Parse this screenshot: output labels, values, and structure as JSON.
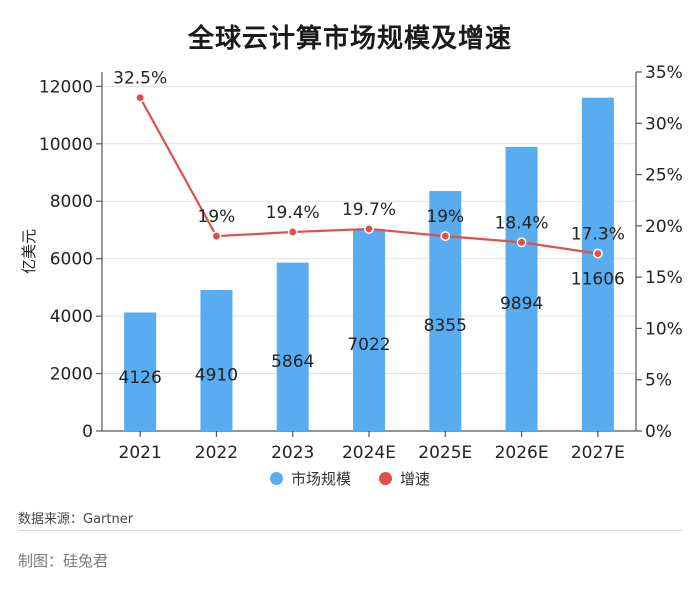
{
  "chart_data": {
    "type": "bar",
    "title": "全球云计算市场规模及增速",
    "ylabel": "亿美元",
    "ylabel_right": "",
    "categories": [
      "2021",
      "2022",
      "2023",
      "2024E",
      "2025E",
      "2026E",
      "2027E"
    ],
    "series": [
      {
        "name": "市场规模",
        "type": "bar",
        "axis": "left",
        "color": "#5aacf0",
        "values": [
          4126,
          4910,
          5864,
          7022,
          8355,
          9894,
          11606
        ],
        "labels": [
          "4126",
          "4910",
          "5864",
          "7022",
          "8355",
          "9894",
          "11606"
        ]
      },
      {
        "name": "增速",
        "type": "line",
        "axis": "right",
        "color": "#e0504a",
        "values": [
          32.5,
          19,
          19.4,
          19.7,
          19,
          18.4,
          17.3
        ],
        "labels": [
          "32.5%",
          "19%",
          "19.4%",
          "19.7%",
          "19%",
          "18.4%",
          "17.3%"
        ]
      }
    ],
    "ylim": [
      0,
      12500
    ],
    "yticks": [
      "0",
      "2000",
      "4000",
      "6000",
      "8000",
      "10000",
      "12000"
    ],
    "ylim_right": [
      0,
      35
    ],
    "yticks_right": [
      "0%",
      "5%",
      "10%",
      "15%",
      "20%",
      "25%",
      "30%",
      "35%"
    ],
    "grid": true,
    "legend_position": "bottom-center"
  },
  "footer": {
    "source": "数据来源：Gartner",
    "credit": "制图：硅兔君"
  }
}
